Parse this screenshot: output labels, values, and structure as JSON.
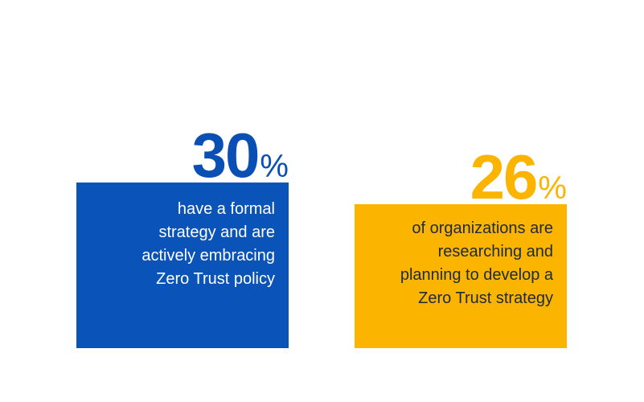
{
  "stats": [
    {
      "number": "30",
      "percent_sign": "%",
      "lines": [
        "have a formal",
        "strategy and are",
        "actively embracing",
        "Zero Trust policy"
      ],
      "accent_color": "#0a53b8"
    },
    {
      "number": "26",
      "percent_sign": "%",
      "lines": [
        "of organizations are",
        "researching and",
        "planning to develop a",
        "Zero Trust strategy"
      ],
      "accent_color": "#fbb400"
    }
  ]
}
